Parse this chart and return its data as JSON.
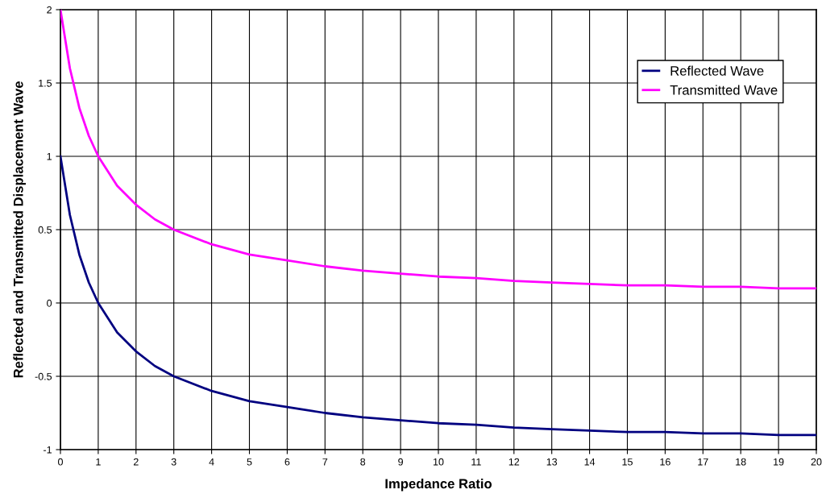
{
  "chart_data": {
    "type": "line",
    "xlabel": "Impedance Ratio",
    "ylabel": "Reflected and Transmitted Displacement Wave",
    "x": [
      0,
      0.25,
      0.5,
      0.75,
      1,
      1.5,
      2,
      2.5,
      3,
      4,
      5,
      6,
      7,
      8,
      9,
      10,
      11,
      12,
      13,
      14,
      15,
      16,
      17,
      18,
      19,
      20
    ],
    "series": [
      {
        "name": "Reflected Wave",
        "color": "#000080",
        "values": [
          1,
          0.6,
          0.33,
          0.14,
          0,
          -0.2,
          -0.33,
          -0.43,
          -0.5,
          -0.6,
          -0.67,
          -0.71,
          -0.75,
          -0.78,
          -0.8,
          -0.82,
          -0.83,
          -0.85,
          -0.86,
          -0.87,
          -0.88,
          -0.88,
          -0.89,
          -0.89,
          -0.9,
          -0.9
        ]
      },
      {
        "name": "Transmitted Wave",
        "color": "#ff00ff",
        "values": [
          2,
          1.6,
          1.33,
          1.14,
          1,
          0.8,
          0.67,
          0.57,
          0.5,
          0.4,
          0.33,
          0.29,
          0.25,
          0.22,
          0.2,
          0.18,
          0.17,
          0.15,
          0.14,
          0.13,
          0.12,
          0.12,
          0.11,
          0.11,
          0.1,
          0.1
        ]
      }
    ],
    "xlim": [
      0,
      20
    ],
    "xticks": [
      0,
      1,
      2,
      3,
      4,
      5,
      6,
      7,
      8,
      9,
      10,
      11,
      12,
      13,
      14,
      15,
      16,
      17,
      18,
      19,
      20
    ],
    "ylim": [
      -1,
      2
    ],
    "yticks": [
      -1,
      -0.5,
      0,
      0.5,
      1,
      1.5,
      2
    ],
    "grid": true,
    "legend": "top right",
    "marker": "none",
    "line_style": "solid"
  }
}
